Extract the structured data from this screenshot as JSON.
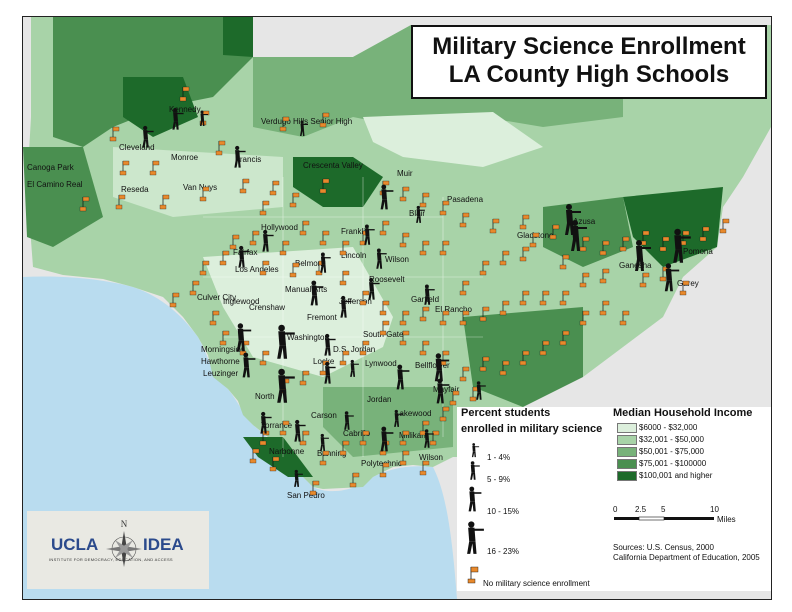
{
  "title": {
    "line1": "Military Science Enrollment",
    "line2": "LA County High Schools"
  },
  "schools": [
    "Kennedy",
    "Verdugo Hills Senior High",
    "Cleveland",
    "Monroe",
    "Francis",
    "Crescenta Valley",
    "Canoga Park",
    "Reseda",
    "Van Nuys",
    "El Camino Real",
    "Muir",
    "Pasadena",
    "Blair",
    "Franklin",
    "Hollywood",
    "Fairfax",
    "Los Angeles",
    "Belmont",
    "Lincoln",
    "Wilson",
    "Gladstone",
    "Azusa",
    "Ganesha",
    "Pomona",
    "Garey",
    "Roosevelt",
    "Culver City",
    "Manual Arts",
    "Crenshaw",
    "Jefferson",
    "Garfield",
    "El Rancho",
    "Inglewood",
    "Fremont",
    "South Gate",
    "Washington",
    "Morningside",
    "D.S. Jordan",
    "Hawthorne",
    "Locke",
    "Lynwood",
    "Bellflower",
    "Leuzinger",
    "North",
    "Jordan",
    "Mayfair",
    "Torrance",
    "Carson",
    "Lakewood",
    "Cabrillo",
    "Millikan",
    "Narbonne",
    "Banning",
    "Polytechnic",
    "Wilson",
    "San Pedro"
  ],
  "legend_enrollment": {
    "title_line1": "Percent students",
    "title_line2": "enrolled in military science",
    "items": [
      "1 - 4%",
      "5 - 9%",
      "10 - 15%",
      "16 - 23%"
    ],
    "none_label": "No military science enrollment"
  },
  "legend_income": {
    "title": "Median Household Income",
    "items": [
      {
        "label": "$6000 - $32,000",
        "color": "#dcefdc"
      },
      {
        "label": "$32,001 - $50,000",
        "color": "#a8d3a8"
      },
      {
        "label": "$50,001 - $75,000",
        "color": "#78b27a"
      },
      {
        "label": "$75,001 - $100000",
        "color": "#4a8f50"
      },
      {
        "label": "$100,001 and higher",
        "color": "#1d6a2a"
      }
    ]
  },
  "scale": {
    "ticks": [
      "0",
      "2.5",
      "5",
      "10"
    ],
    "unit": "Miles"
  },
  "sources": {
    "line1": "Sources: U.S. Census, 2000",
    "line2": "California Department of Education, 2005"
  },
  "logo": {
    "left": "UCLA",
    "right": "IDEA",
    "tagline": "INSTITUTE FOR DEMOCRACY, EDUCATION, AND ACCESS",
    "compass_letter": "N"
  },
  "colors": {
    "ocean": "#b9dcef",
    "flag": "#e8892c",
    "land_outside": "#e6e6e6"
  }
}
